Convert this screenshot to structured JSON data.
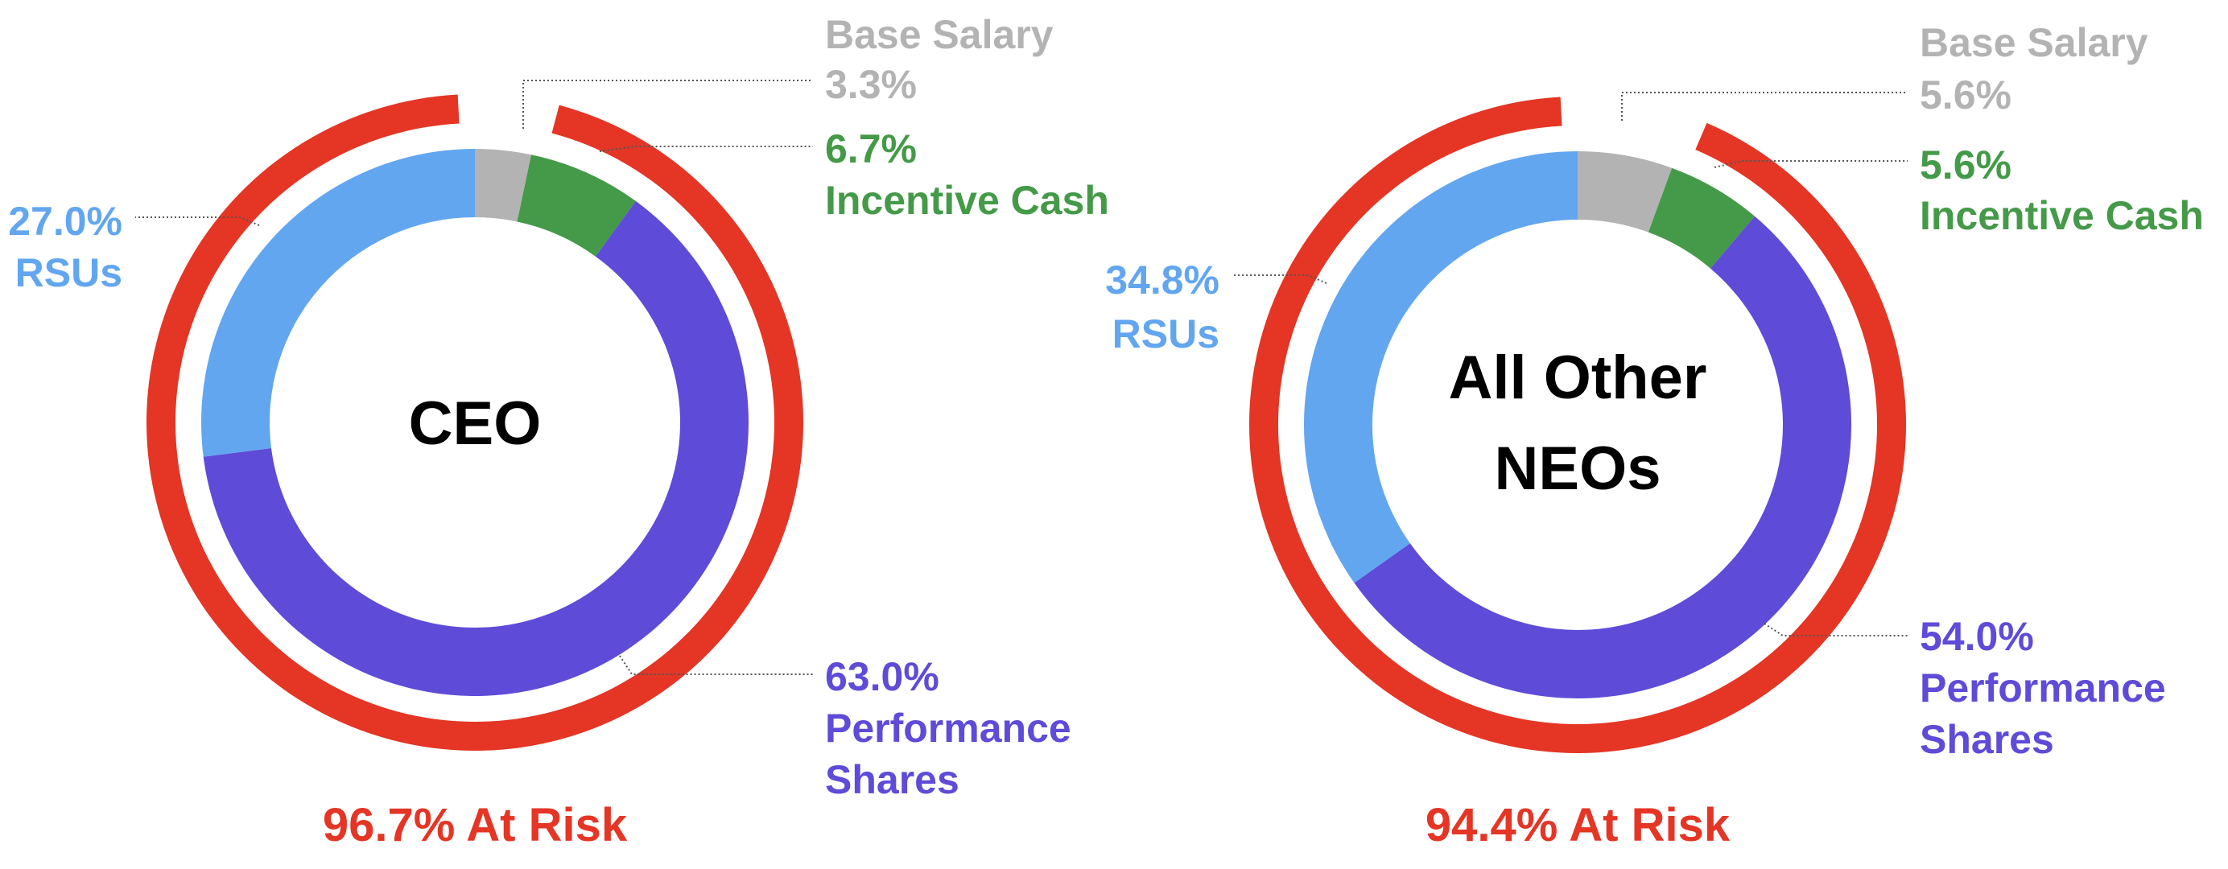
{
  "colors": {
    "base_salary": "#b3b3b3",
    "incentive_cash": "#449a48",
    "rsus": "#62a6f0",
    "performance_shares": "#5e4bd8",
    "at_risk": "#e43525",
    "leader": "#555555",
    "center_text": "#000000"
  },
  "chart_data": [
    {
      "type": "pie",
      "variant": "donut",
      "center_label": [
        "CEO"
      ],
      "slices": [
        {
          "key": "base_salary",
          "label": "Base Salary",
          "value": 3.3,
          "display": "3.3%"
        },
        {
          "key": "incentive_cash",
          "label": "Incentive Cash",
          "value": 6.7,
          "display": "6.7%"
        },
        {
          "key": "performance_shares",
          "label": [
            "Performance",
            "Shares"
          ],
          "value": 63.0,
          "display": "63.0%"
        },
        {
          "key": "rsus",
          "label": "RSUs",
          "value": 27.0,
          "display": "27.0%"
        }
      ],
      "at_risk": {
        "value": 96.7,
        "label": "96.7% At Risk"
      }
    },
    {
      "type": "pie",
      "variant": "donut",
      "center_label": [
        "All Other",
        "NEOs"
      ],
      "slices": [
        {
          "key": "base_salary",
          "label": "Base Salary",
          "value": 5.6,
          "display": "5.6%"
        },
        {
          "key": "incentive_cash",
          "label": "Incentive Cash",
          "value": 5.6,
          "display": "5.6%"
        },
        {
          "key": "performance_shares",
          "label": [
            "Performance",
            "Shares"
          ],
          "value": 54.0,
          "display": "54.0%"
        },
        {
          "key": "rsus",
          "label": "RSUs",
          "value": 34.8,
          "display": "34.8%"
        }
      ],
      "at_risk": {
        "value": 94.4,
        "label": "94.4% At Risk"
      }
    }
  ]
}
